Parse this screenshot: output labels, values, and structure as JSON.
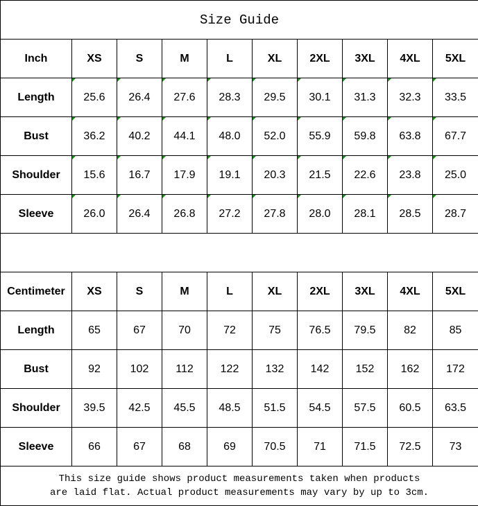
{
  "title": "Size Guide",
  "inch": {
    "unit_label": "Inch",
    "sizes": [
      "XS",
      "S",
      "M",
      "L",
      "XL",
      "2XL",
      "3XL",
      "4XL",
      "5XL"
    ],
    "rows": [
      {
        "label": "Length",
        "values": [
          "25.6",
          "26.4",
          "27.6",
          "28.3",
          "29.5",
          "30.1",
          "31.3",
          "32.3",
          "33.5"
        ]
      },
      {
        "label": "Bust",
        "values": [
          "36.2",
          "40.2",
          "44.1",
          "48.0",
          "52.0",
          "55.9",
          "59.8",
          "63.8",
          "67.7"
        ]
      },
      {
        "label": "Shoulder",
        "values": [
          "15.6",
          "16.7",
          "17.9",
          "19.1",
          "20.3",
          "21.5",
          "22.6",
          "23.8",
          "25.0"
        ]
      },
      {
        "label": "Sleeve",
        "values": [
          "26.0",
          "26.4",
          "26.8",
          "27.2",
          "27.8",
          "28.0",
          "28.1",
          "28.5",
          "28.7"
        ]
      }
    ]
  },
  "centimeter": {
    "unit_label": "Centimeter",
    "sizes": [
      "XS",
      "S",
      "M",
      "L",
      "XL",
      "2XL",
      "3XL",
      "4XL",
      "5XL"
    ],
    "rows": [
      {
        "label": "Length",
        "values": [
          "65",
          "67",
          "70",
          "72",
          "75",
          "76.5",
          "79.5",
          "82",
          "85"
        ]
      },
      {
        "label": "Bust",
        "values": [
          "92",
          "102",
          "112",
          "122",
          "132",
          "142",
          "152",
          "162",
          "172"
        ]
      },
      {
        "label": "Shoulder",
        "values": [
          "39.5",
          "42.5",
          "45.5",
          "48.5",
          "51.5",
          "54.5",
          "57.5",
          "60.5",
          "63.5"
        ]
      },
      {
        "label": "Sleeve",
        "values": [
          "66",
          "67",
          "68",
          "69",
          "70.5",
          "71",
          "71.5",
          "72.5",
          "73"
        ]
      }
    ]
  },
  "footer": {
    "line1": "This size guide shows product measurements taken when products",
    "line2": "are laid flat. Actual product measurements may vary by up to 3cm."
  },
  "colors": {
    "cell_marker": "#1a8a1a",
    "border": "#000000"
  }
}
